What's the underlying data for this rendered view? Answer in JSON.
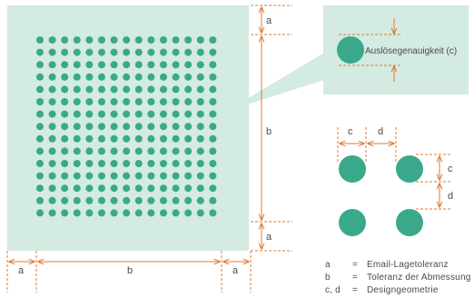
{
  "colors": {
    "panel": "#d3ebe1",
    "dot": "#3aa98b",
    "dimension": "#e0792f",
    "text": "#4a4a4a"
  },
  "labels": {
    "a": "a",
    "b": "b",
    "c": "c",
    "d": "d"
  },
  "callout": {
    "text": "Auslösegenauigkeit (c)"
  },
  "dot_grid": {
    "rows": 15,
    "cols": 15
  },
  "legend": [
    {
      "key": "a",
      "eq": "=",
      "text": "Email-Lagetoleranz"
    },
    {
      "key": "b",
      "eq": "=",
      "text": "Toleranz der Abmessung"
    },
    {
      "key": "c, d",
      "eq": "=",
      "text": "Designgeometrie"
    }
  ]
}
